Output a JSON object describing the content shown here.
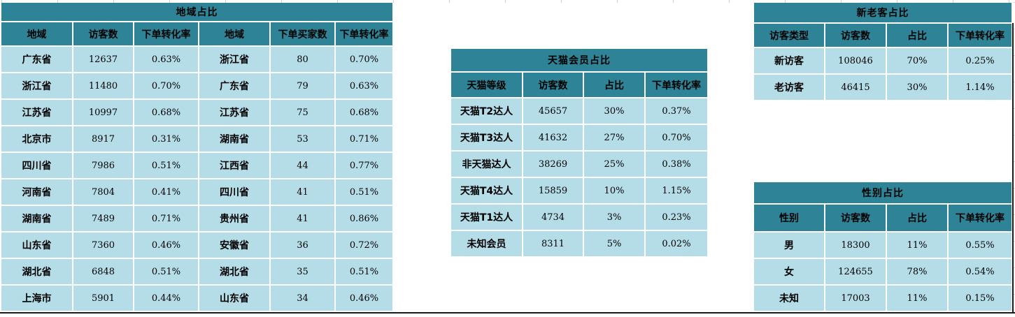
{
  "colors": {
    "header_bg": "#2e8496",
    "cell_bg": "#b5dde8",
    "grid_line": "#cfcfcf",
    "boundary": "#1a1a1a",
    "text": "#000000"
  },
  "tables": {
    "region": {
      "title": "地域占比",
      "columns": [
        "地域",
        "访客数",
        "下单转化率",
        "地域",
        "下单买家数",
        "下单转化率"
      ],
      "rows": [
        [
          "广东省",
          "12637",
          "0.63%",
          "浙江省",
          "80",
          "0.70%"
        ],
        [
          "浙江省",
          "11480",
          "0.70%",
          "广东省",
          "79",
          "0.63%"
        ],
        [
          "江苏省",
          "10997",
          "0.68%",
          "江苏省",
          "75",
          "0.68%"
        ],
        [
          "北京市",
          "8917",
          "0.31%",
          "湖南省",
          "53",
          "0.71%"
        ],
        [
          "四川省",
          "7986",
          "0.51%",
          "江西省",
          "44",
          "0.77%"
        ],
        [
          "河南省",
          "7804",
          "0.41%",
          "四川省",
          "41",
          "0.51%"
        ],
        [
          "湖南省",
          "7489",
          "0.71%",
          "贵州省",
          "41",
          "0.86%"
        ],
        [
          "山东省",
          "7360",
          "0.46%",
          "安徽省",
          "36",
          "0.72%"
        ],
        [
          "湖北省",
          "6848",
          "0.51%",
          "湖北省",
          "35",
          "0.51%"
        ],
        [
          "上海市",
          "5901",
          "0.44%",
          "山东省",
          "34",
          "0.46%"
        ]
      ]
    },
    "tmall": {
      "title": "天猫会员占比",
      "columns": [
        "天猫等级",
        "访客数",
        "占比",
        "下单转化率"
      ],
      "rows": [
        [
          "天猫T2达人",
          "45657",
          "30%",
          "0.37%"
        ],
        [
          "天猫T3达人",
          "41632",
          "27%",
          "0.70%"
        ],
        [
          "非天猫达人",
          "38269",
          "25%",
          "0.38%"
        ],
        [
          "天猫T4达人",
          "15859",
          "10%",
          "1.15%"
        ],
        [
          "天猫T1达人",
          "4734",
          "3%",
          "0.23%"
        ],
        [
          "未知会员",
          "8311",
          "5%",
          "0.02%"
        ]
      ]
    },
    "visitor_type": {
      "title": "新老客占比",
      "columns": [
        "访客类型",
        "访客数",
        "占比",
        "下单转化率"
      ],
      "rows": [
        [
          "新访客",
          "108046",
          "70%",
          "0.25%"
        ],
        [
          "老访客",
          "46415",
          "30%",
          "1.14%"
        ]
      ]
    },
    "gender": {
      "title": "性别占比",
      "columns": [
        "性别",
        "访客数",
        "占比",
        "下单转化率"
      ],
      "rows": [
        [
          "男",
          "18300",
          "11%",
          "0.55%"
        ],
        [
          "女",
          "124655",
          "78%",
          "0.54%"
        ],
        [
          "未知",
          "17003",
          "11%",
          "0.15%"
        ]
      ]
    }
  }
}
